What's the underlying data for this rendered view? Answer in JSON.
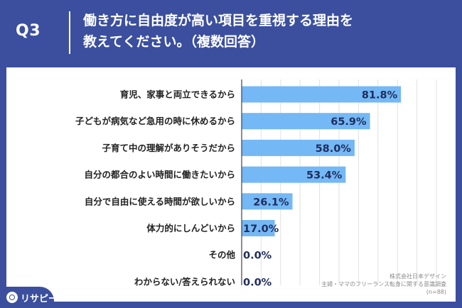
{
  "header": {
    "question_label": "Q3",
    "title_line1": "働き方に自由度が高い項目を重視する理由を",
    "title_line2": "教えてください。（複数回答）"
  },
  "chart_data": {
    "type": "bar",
    "orientation": "horizontal",
    "categories": [
      "育児、家事と両立できるから",
      "子どもが病気など急用の時に休めるから",
      "子育て中の理解がありそうだから",
      "自分の都合のよい時間に働きたいから",
      "自分で自由に使える時間が欲しいから",
      "体力的にしんどいから",
      "その他",
      "わからない/答えられない"
    ],
    "values": [
      81.8,
      65.9,
      58.0,
      53.4,
      26.1,
      17.0,
      0.0,
      0.0
    ],
    "value_labels": [
      "81.8%",
      "65.9%",
      "58.0%",
      "53.4%",
      "26.1%",
      "17.0%",
      "0.0%",
      "0.0%"
    ],
    "xlim": [
      0,
      100
    ],
    "bar_color": "#74b8f5",
    "grid": true
  },
  "footnote": {
    "line1": "株式会社日本デザイン",
    "line2": "主婦・ママのフリーランス転身に関する意識調査",
    "line3": "(n=88)"
  },
  "logo": {
    "text": "リサピー"
  },
  "colors": {
    "background": "#3b4f9e",
    "panel": "#ffffff",
    "bar": "#74b8f5",
    "value_text": "#1f2d5c"
  }
}
